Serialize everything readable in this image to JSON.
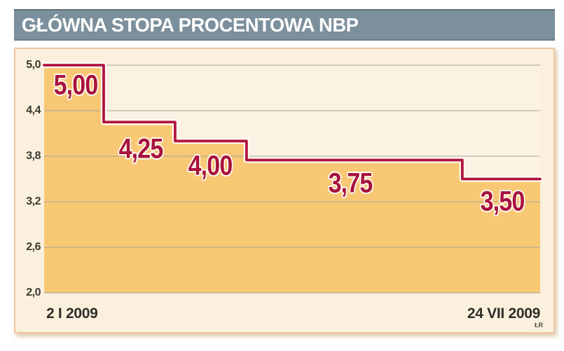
{
  "title_bar": {
    "title": "GŁÓWNA STOPA PROCENTOWA NBP"
  },
  "credit": "ŁR",
  "colors": {
    "title_bar_bg": "#7c8f9c",
    "title_text": "#ffffff",
    "panel_bg": "#fbf0dd",
    "panel_border": "#f1c69f",
    "plot_bg": "#fcf2e3",
    "area_fill": "#f9c875",
    "gridline": "#a7a498",
    "line": "#b0163f",
    "line_casing": "#fffdf6",
    "step_label": "#a8123c",
    "axis_text": "#3a3a32"
  },
  "chart_data": {
    "type": "area",
    "subtype": "step",
    "title": "GŁÓWNA STOPA PROCENTOWA NBP",
    "xlabel": "",
    "ylabel": "",
    "ylim": [
      2.0,
      5.0
    ],
    "grid": true,
    "legend_position": "none",
    "y_ticks": [
      "5,0",
      "4,4",
      "3,8",
      "3,2",
      "2,6",
      "2,0"
    ],
    "y_tick_values": [
      5.0,
      4.4,
      3.8,
      3.2,
      2.6,
      2.0
    ],
    "x_start_label": "2 I 2009",
    "x_end_label": "24 VII 2009",
    "steps": [
      {
        "label": "5,00",
        "value": 5.0,
        "x0": 0.0,
        "x1": 0.12,
        "label_x": 0.064,
        "label_y": 0.089
      },
      {
        "label": "4,25",
        "value": 4.25,
        "x0": 0.12,
        "x1": 0.264,
        "label_x": 0.195,
        "label_y": 0.369
      },
      {
        "label": "4,00",
        "value": 4.0,
        "x0": 0.264,
        "x1": 0.408,
        "label_x": 0.335,
        "label_y": 0.443
      },
      {
        "label": "3,75",
        "value": 3.75,
        "x0": 0.408,
        "x1": 0.843,
        "label_x": 0.617,
        "label_y": 0.52
      },
      {
        "label": "3,50",
        "value": 3.5,
        "x0": 0.843,
        "x1": 1.0,
        "label_x": 0.924,
        "label_y": 0.6
      }
    ]
  }
}
